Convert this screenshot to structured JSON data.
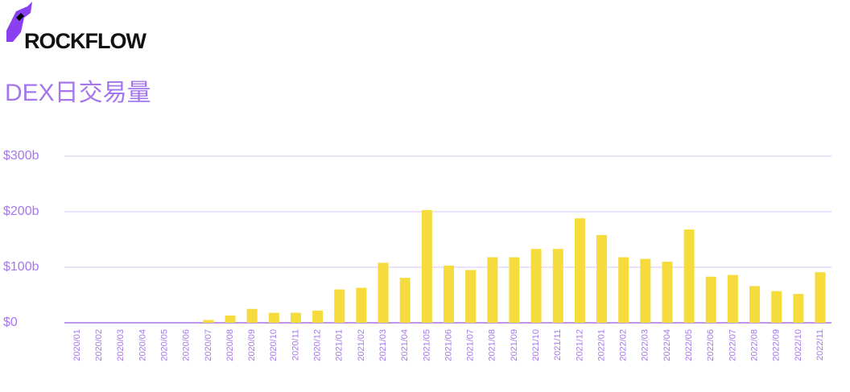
{
  "logo": "ROCKFLOW",
  "chart_data": {
    "type": "bar",
    "title": "DEX日交易量",
    "categories": [
      "2020/01",
      "2020/02",
      "2020/03",
      "2020/04",
      "2020/05",
      "2020/06",
      "2020/07",
      "2020/08",
      "2020/09",
      "2020/10",
      "2020/11",
      "2020/12",
      "2021/01",
      "2021/02",
      "2021/03",
      "2021/04",
      "2021/05",
      "2021/06",
      "2021/07",
      "2021/08",
      "2021/09",
      "2021/10",
      "2021/11",
      "2021/12",
      "2022/01",
      "2022/02",
      "2022/03",
      "2022/04",
      "2022/05",
      "2022/06",
      "2022/07",
      "2022/08",
      "2022/09",
      "2022/10",
      "2022/11"
    ],
    "values": [
      0,
      0,
      0,
      0,
      0,
      0,
      5,
      13,
      25,
      18,
      18,
      22,
      60,
      63,
      108,
      81,
      203,
      103,
      95,
      118,
      118,
      133,
      133,
      188,
      158,
      118,
      115,
      110,
      168,
      83,
      86,
      66,
      57,
      52,
      91
    ],
    "color": "#f5dc3c",
    "ylim": [
      0,
      300
    ],
    "yticks": [
      {
        "value": 0,
        "label": "$0"
      },
      {
        "value": 100,
        "label": "$100b"
      },
      {
        "value": 200,
        "label": "$200b"
      },
      {
        "value": 300,
        "label": "$300b"
      }
    ],
    "grid": true
  }
}
